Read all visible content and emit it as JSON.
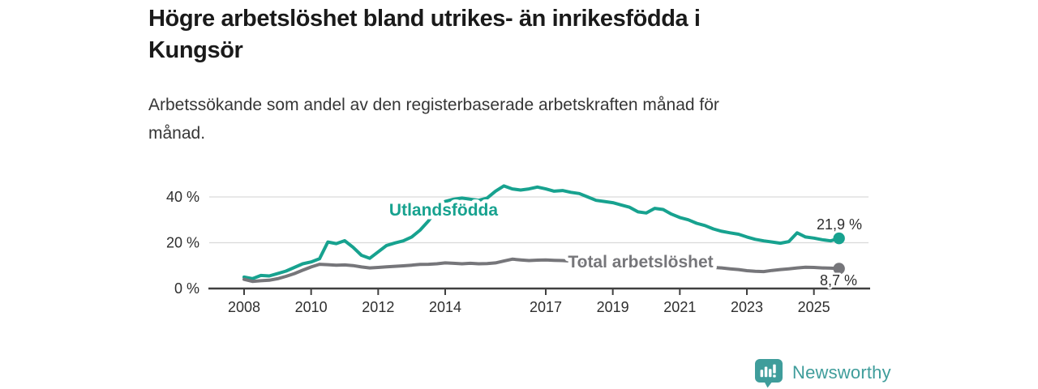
{
  "header": {
    "title": "Högre arbetslöshet bland utrikes- än inrikesfödda i\nKungsör",
    "subtitle": "Arbetssökande som andel av den registerbaserade arbetskraften månad för\nmånad."
  },
  "chart_data": {
    "type": "line",
    "title": "Högre arbetslöshet bland utrikes- än inrikesfödda i Kungsör",
    "subtitle": "Arbetssökande som andel av den registerbaserade arbetskraften månad för månad.",
    "xlabel": "",
    "ylabel": "",
    "xlim": [
      2006.95,
      2026.65
    ],
    "ylim": [
      0,
      48
    ],
    "grid": "horizontal",
    "legend_position": "inline-labels",
    "x_ticks": [
      {
        "value": 2008,
        "label": "2008"
      },
      {
        "value": 2010,
        "label": "2010"
      },
      {
        "value": 2012,
        "label": "2012"
      },
      {
        "value": 2014,
        "label": "2014"
      },
      {
        "value": 2017,
        "label": "2017"
      },
      {
        "value": 2019,
        "label": "2019"
      },
      {
        "value": 2021,
        "label": "2021"
      },
      {
        "value": 2023,
        "label": "2023"
      },
      {
        "value": 2025,
        "label": "2025"
      }
    ],
    "y_ticks": [
      {
        "value": 0,
        "label": "0 %"
      },
      {
        "value": 20,
        "label": "20 %"
      },
      {
        "value": 40,
        "label": "40 %"
      }
    ],
    "x_start": 2008.0,
    "x_step_years": 0.25,
    "series": [
      {
        "name": "Utlandsfödda",
        "color": "#17a28f",
        "end_label": "21,9 %",
        "end_value": 21.9,
        "values": [
          5.0,
          4.3,
          5.7,
          5.5,
          6.5,
          7.6,
          9.2,
          10.8,
          11.6,
          13.0,
          20.3,
          19.6,
          20.9,
          18.0,
          14.5,
          13.2,
          16.0,
          18.8,
          19.9,
          20.8,
          22.5,
          25.5,
          29.5,
          34.5,
          38.0,
          39.0,
          39.5,
          39.0,
          38.5,
          39.5,
          42.5,
          44.8,
          43.5,
          43.0,
          43.5,
          44.3,
          43.5,
          42.5,
          42.8,
          42.0,
          41.5,
          40.0,
          38.5,
          38.0,
          37.5,
          36.5,
          35.5,
          33.5,
          33.0,
          35.0,
          34.5,
          32.5,
          31.0,
          30.0,
          28.5,
          27.5,
          26.0,
          25.0,
          24.3,
          23.7,
          22.5,
          21.5,
          20.8,
          20.3,
          19.8,
          20.5,
          24.3,
          22.5,
          22.0,
          21.3,
          20.8,
          21.9
        ]
      },
      {
        "name": "Total arbetslöshet",
        "color": "#76767a",
        "end_label": "8,7 %",
        "end_value": 8.7,
        "values": [
          4.0,
          3.1,
          3.4,
          3.6,
          4.3,
          5.3,
          6.5,
          8.0,
          9.4,
          10.6,
          10.4,
          10.2,
          10.3,
          10.0,
          9.4,
          9.0,
          9.2,
          9.5,
          9.7,
          9.9,
          10.2,
          10.5,
          10.6,
          10.8,
          11.2,
          11.0,
          10.8,
          11.0,
          10.8,
          10.9,
          11.2,
          12.0,
          12.8,
          12.5,
          12.2,
          12.4,
          12.5,
          12.3,
          12.2,
          12.0,
          11.8,
          11.5,
          11.2,
          11.0,
          10.8,
          10.5,
          10.3,
          10.2,
          10.5,
          11.2,
          11.0,
          10.5,
          10.2,
          10.0,
          9.7,
          9.4,
          9.2,
          9.0,
          8.6,
          8.3,
          7.8,
          7.5,
          7.4,
          7.9,
          8.3,
          8.6,
          9.0,
          9.3,
          9.2,
          9.0,
          8.9,
          8.7
        ]
      }
    ],
    "colors": {
      "grid": "#d9d9d9",
      "axis": "#404040"
    }
  },
  "branding": {
    "logo_text": "Newsworthy",
    "logo_icon": "bar-chart-speech-bubble-icon",
    "color": "#3f9d9b"
  }
}
